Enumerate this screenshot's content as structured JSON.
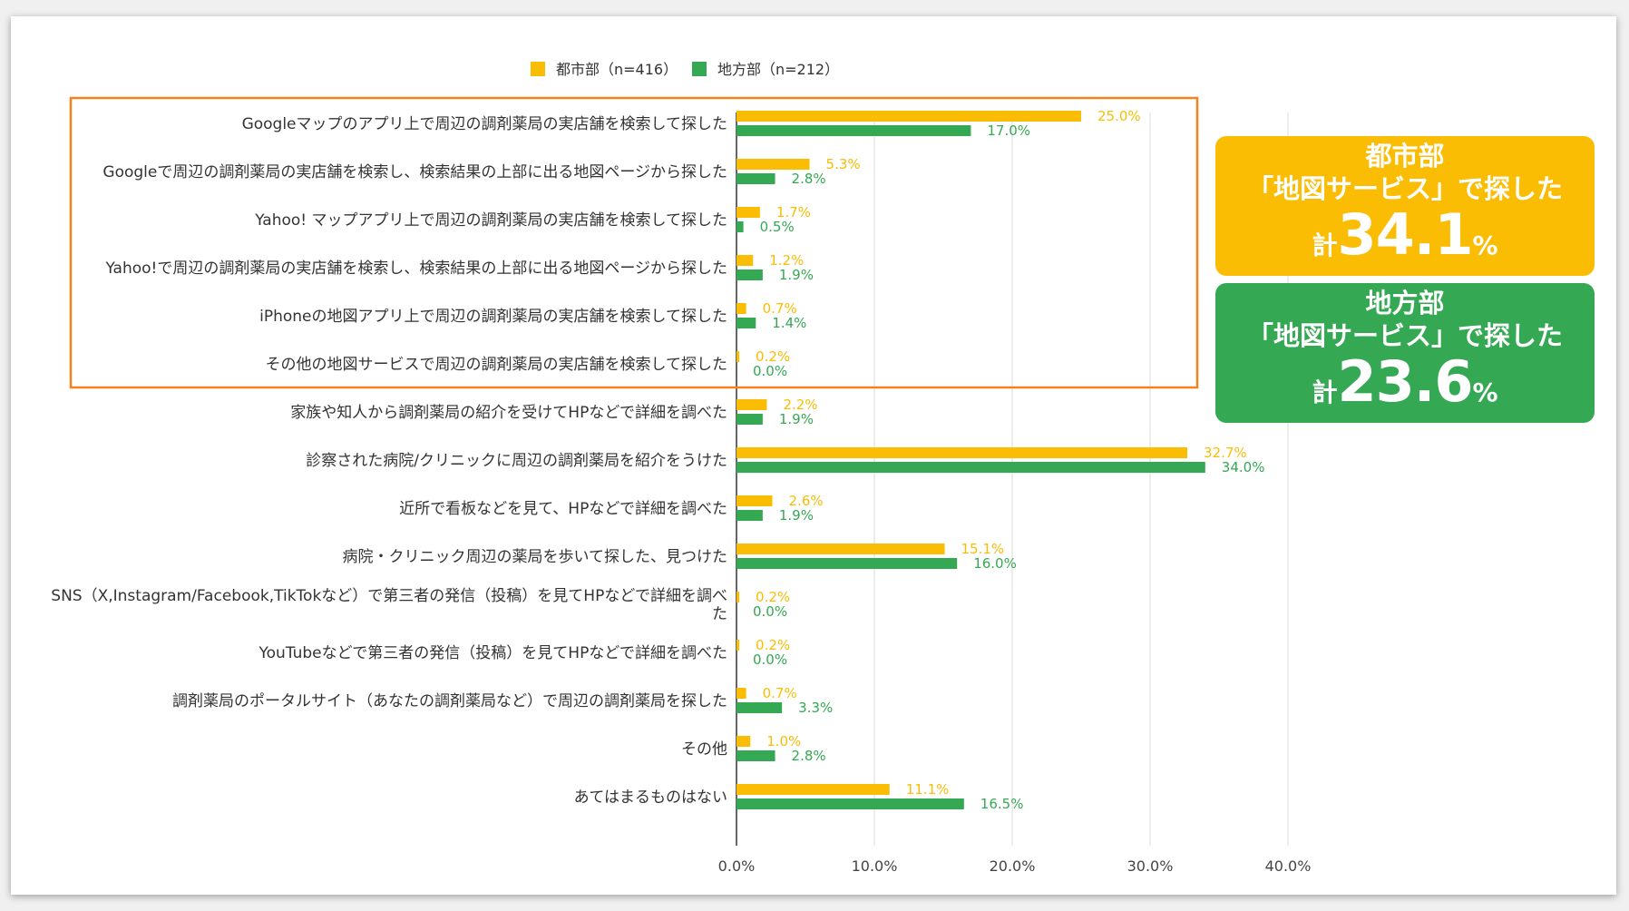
{
  "colors": {
    "urban": "#fbbc04",
    "rural": "#34a853",
    "highlight": "#f5821f",
    "axis": "#333333",
    "grid": "#d9d9d9"
  },
  "callouts": {
    "urban": {
      "line1": "都市部",
      "line2": "「地図サービス」で探した",
      "prefix": "計",
      "value": "34.1",
      "suffix": "%"
    },
    "rural": {
      "line1": "地方部",
      "line2": "「地図サービス」で探した",
      "prefix": "計",
      "value": "23.6",
      "suffix": "%"
    }
  },
  "chart_data": {
    "type": "bar",
    "orientation": "horizontal",
    "categories": [
      [
        "Googleマップのアプリ上で周辺の調剤薬局の実店舗を検索して探した"
      ],
      [
        "Googleで周辺の調剤薬局の実店舗を検索し、検索結果の上部に出る地図ページから探した"
      ],
      [
        "Yahoo! マップアプリ上で周辺の調剤薬局の実店舗を検索して探した"
      ],
      [
        "Yahoo!で周辺の調剤薬局の実店舗を検索し、検索結果の上部に出る地図ページから探した"
      ],
      [
        "iPhoneの地図アプリ上で周辺の調剤薬局の実店舗を検索して探した"
      ],
      [
        "その他の地図サービスで周辺の調剤薬局の実店舗を検索して探した"
      ],
      [
        "家族や知人から調剤薬局の紹介を受けてHPなどで詳細を調べた"
      ],
      [
        "診察された病院/クリニックに周辺の調剤薬局を紹介をうけた"
      ],
      [
        "近所で看板などを見て、HPなどで詳細を調べた"
      ],
      [
        "病院・クリニック周辺の薬局を歩いて探した、見つけた"
      ],
      [
        "SNS（X,Instagram/Facebook,TikTokなど）で第三者の発信（投稿）を見てHPなどで詳細を調べ",
        "た"
      ],
      [
        "YouTubeなどで第三者の発信（投稿）を見てHPなどで詳細を調べた"
      ],
      [
        "調剤薬局のポータルサイト（あなたの調剤薬局など）で周辺の調剤薬局を探した"
      ],
      [
        "その他"
      ],
      [
        "あてはまるものはない"
      ]
    ],
    "series": [
      {
        "name": "都市部（n=416）",
        "color": "#fbbc04",
        "values": [
          25.0,
          5.3,
          1.7,
          1.2,
          0.7,
          0.2,
          2.2,
          32.7,
          2.6,
          15.1,
          0.2,
          0.2,
          0.7,
          1.0,
          11.1
        ]
      },
      {
        "name": "地方部（n=212）",
        "color": "#34a853",
        "values": [
          17.0,
          2.8,
          0.5,
          1.9,
          1.4,
          0.0,
          1.9,
          34.0,
          1.9,
          16.0,
          0.0,
          0.0,
          3.3,
          2.8,
          16.5
        ]
      }
    ],
    "value_format": "%",
    "x_ticks": [
      "0.0%",
      "10.0%",
      "20.0%",
      "30.0%",
      "40.0%"
    ],
    "x_tick_values": [
      0,
      10,
      20,
      30,
      40
    ],
    "xlim": [
      0,
      40
    ],
    "grid": true,
    "legend_position": "top",
    "highlight_group": {
      "from_index": 0,
      "to_index": 5
    }
  }
}
